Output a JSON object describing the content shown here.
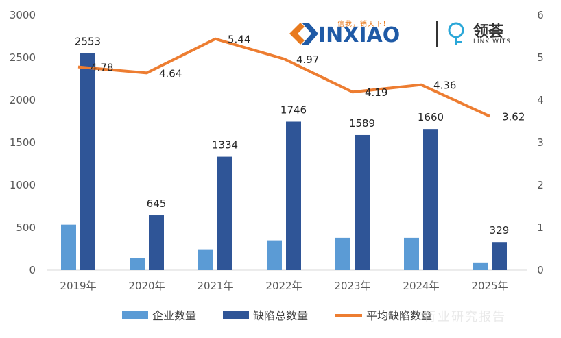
{
  "chart_data": {
    "type": "bar",
    "categories": [
      "2019年",
      "2020年",
      "2021年",
      "2022年",
      "2023年",
      "2024年",
      "2025年"
    ],
    "series": [
      {
        "name": "企业数量",
        "type": "bar",
        "axis": "left",
        "color": "#5b9bd5",
        "values": [
          535,
          140,
          245,
          350,
          380,
          380,
          90
        ]
      },
      {
        "name": "缺陷总数量",
        "type": "bar",
        "axis": "left",
        "color": "#2f5597",
        "values": [
          2553,
          645,
          1334,
          1746,
          1589,
          1660,
          329
        ],
        "labels": [
          "2553",
          "645",
          "1334",
          "1746",
          "1589",
          "1660",
          "329"
        ]
      },
      {
        "name": "平均缺陷数量",
        "type": "line",
        "axis": "right",
        "color": "#ed7d31",
        "values": [
          4.78,
          4.64,
          5.44,
          4.97,
          4.19,
          4.36,
          3.62
        ],
        "labels": [
          "4.78",
          "4.64",
          "5.44",
          "4.97",
          "4.19",
          "4.36",
          "3.62"
        ]
      }
    ],
    "y_left": {
      "ylim": [
        0,
        3000
      ],
      "ticks": [
        "0",
        "500",
        "1000",
        "1500",
        "2000",
        "2500",
        "3000"
      ]
    },
    "y_right": {
      "ylim": [
        0,
        6
      ],
      "ticks": [
        "0",
        "1",
        "2",
        "3",
        "4",
        "5",
        "6"
      ]
    },
    "grid": false,
    "legend": "bottom"
  },
  "logo": {
    "slogan": "信我，销天下！",
    "wordmark": "INXIAO",
    "partner_cn": "领荟",
    "partner_en": "LINK WITS"
  },
  "watermark": "行业研究报告",
  "colors": {
    "brand_orange": "#e87a1e",
    "brand_blue": "#1f5aa6"
  }
}
